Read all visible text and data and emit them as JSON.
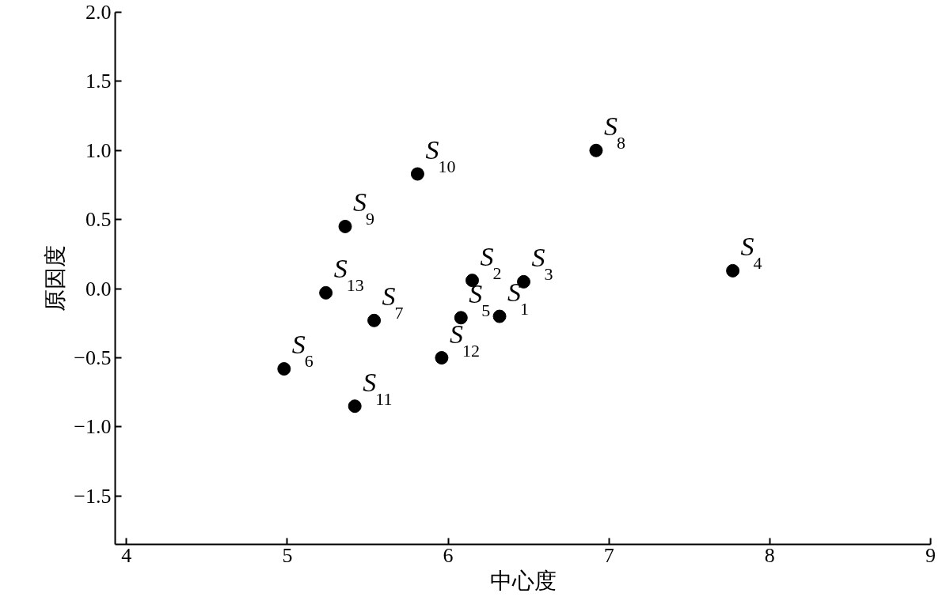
{
  "chart_data": {
    "type": "scatter",
    "xlabel": "中心度",
    "ylabel": "原因度",
    "x": [
      6.32,
      6.15,
      6.47,
      7.77,
      6.08,
      4.98,
      5.54,
      6.92,
      5.36,
      5.81,
      5.42,
      5.96,
      5.24
    ],
    "series": [
      {
        "color": "#000000",
        "values": [
          -0.2,
          0.06,
          0.05,
          0.13,
          -0.21,
          -0.58,
          -0.23,
          1.0,
          0.45,
          0.83,
          -0.85,
          -0.5,
          -0.03
        ]
      }
    ],
    "marker": "circle",
    "grid": false,
    "xlim": [
      3.93,
      9.0
    ],
    "xticks": [
      4,
      5,
      6,
      7,
      8,
      9
    ],
    "ylim": [
      -1.85,
      2.0
    ],
    "yticks": [
      {
        "value": -1.5,
        "label": "−1.5"
      },
      {
        "value": -1.0,
        "label": "−1.0"
      },
      {
        "value": -0.5,
        "label": "−0.5"
      },
      {
        "value": 0,
        "label": "0.0"
      },
      {
        "value": 0.5,
        "label": "0.5"
      },
      {
        "value": 1.0,
        "label": "1.0"
      },
      {
        "value": 1.5,
        "label": "1.5"
      },
      {
        "value": 2.0,
        "label": "2.0"
      }
    ],
    "annotations": [
      {
        "text": "S$_{1}$",
        "x": 6.32,
        "y": -0.2
      },
      {
        "text": "S$_{2}$",
        "x": 6.15,
        "y": 0.06
      },
      {
        "text": "S$_{3}$",
        "x": 6.47,
        "y": 0.05
      },
      {
        "text": "S$_{4}$",
        "x": 7.77,
        "y": 0.13
      },
      {
        "text": "S$_{5}$",
        "x": 6.08,
        "y": -0.21
      },
      {
        "text": "S$_{6}$",
        "x": 4.98,
        "y": -0.58
      },
      {
        "text": "S$_{7}$",
        "x": 5.54,
        "y": -0.23
      },
      {
        "text": "S$_{8}$",
        "x": 6.92,
        "y": 1.0
      },
      {
        "text": "S$_{9}$",
        "x": 5.36,
        "y": 0.45
      },
      {
        "text": "S$_{10}$",
        "x": 5.81,
        "y": 0.83
      },
      {
        "text": "S$_{11}$",
        "x": 5.42,
        "y": -0.85
      },
      {
        "text": "S$_{12}$",
        "x": 5.96,
        "y": -0.5
      },
      {
        "text": "S$_{13}$",
        "x": 5.24,
        "y": -0.03
      }
    ]
  }
}
